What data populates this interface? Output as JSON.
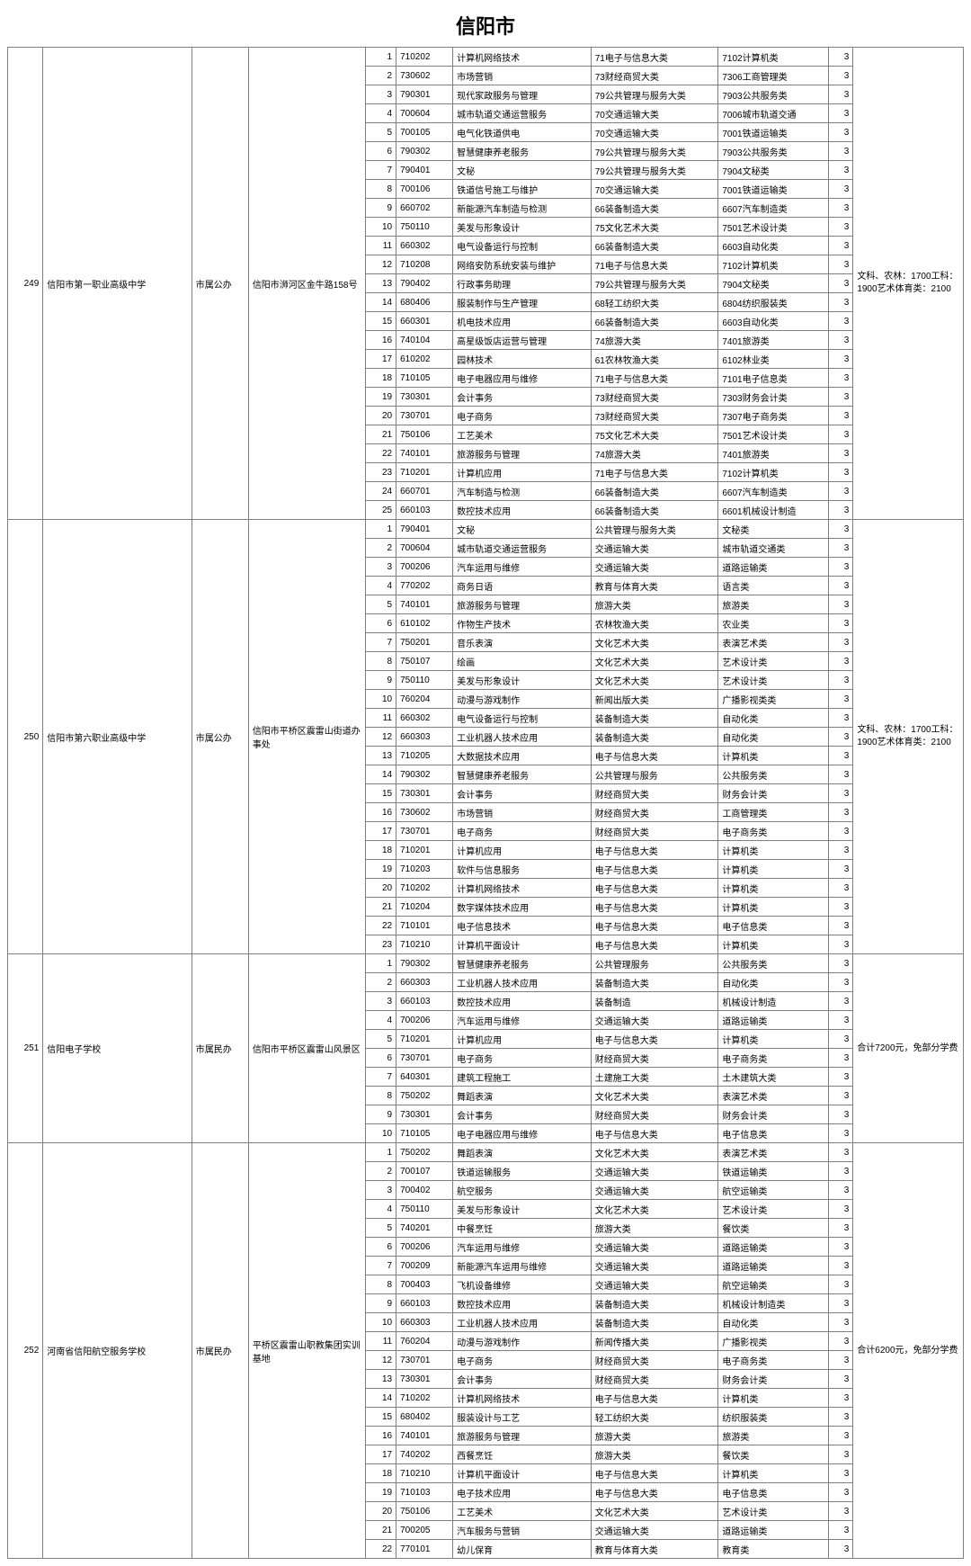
{
  "title": "信阳市",
  "colors": {
    "border": "#808080",
    "background": "#ffffff",
    "text": "#000000"
  },
  "schools": [
    {
      "index": 249,
      "name": "信阳市第一职业高级中学",
      "authority": "市属公办",
      "address": "信阳市浉河区金牛路158号",
      "note": "文科、农林：1700工科：1900艺术体育类：2100",
      "rows": [
        {
          "n": 1,
          "code": "710202",
          "major": "计算机网络技术",
          "cat1": "71电子与信息大类",
          "cat2": "7102计算机类",
          "yr": 3
        },
        {
          "n": 2,
          "code": "730602",
          "major": "市场营销",
          "cat1": "73财经商贸大类",
          "cat2": "7306工商管理类",
          "yr": 3
        },
        {
          "n": 3,
          "code": "790301",
          "major": "现代家政服务与管理",
          "cat1": "79公共管理与服务大类",
          "cat2": "7903公共服务类",
          "yr": 3
        },
        {
          "n": 4,
          "code": "700604",
          "major": "城市轨道交通运营服务",
          "cat1": "70交通运输大类",
          "cat2": "7006城市轨道交通",
          "yr": 3
        },
        {
          "n": 5,
          "code": "700105",
          "major": "电气化铁道供电",
          "cat1": "70交通运输大类",
          "cat2": "7001铁道运输类",
          "yr": 3
        },
        {
          "n": 6,
          "code": "790302",
          "major": "智慧健康养老服务",
          "cat1": "79公共管理与服务大类",
          "cat2": "7903公共服务类",
          "yr": 3
        },
        {
          "n": 7,
          "code": "790401",
          "major": "文秘",
          "cat1": "79公共管理与服务大类",
          "cat2": "7904文秘类",
          "yr": 3
        },
        {
          "n": 8,
          "code": "700106",
          "major": "铁道信号施工与维护",
          "cat1": "70交通运输大类",
          "cat2": "7001铁道运输类",
          "yr": 3
        },
        {
          "n": 9,
          "code": "660702",
          "major": "新能源汽车制造与检测",
          "cat1": "66装备制造大类",
          "cat2": "6607汽车制造类",
          "yr": 3
        },
        {
          "n": 10,
          "code": "750110",
          "major": "美发与形象设计",
          "cat1": "75文化艺术大类",
          "cat2": "7501艺术设计类",
          "yr": 3
        },
        {
          "n": 11,
          "code": "660302",
          "major": "电气设备运行与控制",
          "cat1": "66装备制造大类",
          "cat2": "6603自动化类",
          "yr": 3
        },
        {
          "n": 12,
          "code": "710208",
          "major": "网络安防系统安装与维护",
          "cat1": "71电子与信息大类",
          "cat2": "7102计算机类",
          "yr": 3
        },
        {
          "n": 13,
          "code": "790402",
          "major": "行政事务助理",
          "cat1": "79公共管理与服务大类",
          "cat2": "7904文秘类",
          "yr": 3
        },
        {
          "n": 14,
          "code": "680406",
          "major": "服装制作与生产管理",
          "cat1": "68轻工纺织大类",
          "cat2": "6804纺织服装类",
          "yr": 3
        },
        {
          "n": 15,
          "code": "660301",
          "major": "机电技术应用",
          "cat1": "66装备制造大类",
          "cat2": "6603自动化类",
          "yr": 3
        },
        {
          "n": 16,
          "code": "740104",
          "major": "高星级饭店运营与管理",
          "cat1": "74旅游大类",
          "cat2": "7401旅游类",
          "yr": 3
        },
        {
          "n": 17,
          "code": "610202",
          "major": "园林技术",
          "cat1": "61农林牧渔大类",
          "cat2": "6102林业类",
          "yr": 3
        },
        {
          "n": 18,
          "code": "710105",
          "major": "电子电器应用与维修",
          "cat1": "71电子与信息大类",
          "cat2": "7101电子信息类",
          "yr": 3
        },
        {
          "n": 19,
          "code": "730301",
          "major": "会计事务",
          "cat1": "73财经商贸大类",
          "cat2": "7303财务会计类",
          "yr": 3
        },
        {
          "n": 20,
          "code": "730701",
          "major": "电子商务",
          "cat1": "73财经商贸大类",
          "cat2": "7307电子商务类",
          "yr": 3
        },
        {
          "n": 21,
          "code": "750106",
          "major": "工艺美术",
          "cat1": "75文化艺术大类",
          "cat2": "7501艺术设计类",
          "yr": 3
        },
        {
          "n": 22,
          "code": "740101",
          "major": "旅游服务与管理",
          "cat1": "74旅游大类",
          "cat2": "7401旅游类",
          "yr": 3
        },
        {
          "n": 23,
          "code": "710201",
          "major": "计算机应用",
          "cat1": "71电子与信息大类",
          "cat2": "7102计算机类",
          "yr": 3
        },
        {
          "n": 24,
          "code": "660701",
          "major": "汽车制造与检测",
          "cat1": "66装备制造大类",
          "cat2": "6607汽车制造类",
          "yr": 3
        },
        {
          "n": 25,
          "code": "660103",
          "major": "数控技术应用",
          "cat1": "66装备制造大类",
          "cat2": "6601机械设计制造",
          "yr": 3
        }
      ]
    },
    {
      "index": 250,
      "name": "信阳市第六职业高级中学",
      "authority": "市属公办",
      "address": "信阳市平桥区震雷山街道办事处",
      "note": "文科、农林：1700工科：1900艺术体育类：2100",
      "rows": [
        {
          "n": 1,
          "code": "790401",
          "major": "文秘",
          "cat1": "公共管理与服务大类",
          "cat2": "文秘类",
          "yr": 3
        },
        {
          "n": 2,
          "code": "700604",
          "major": "城市轨道交通运营服务",
          "cat1": "交通运输大类",
          "cat2": "城市轨道交通类",
          "yr": 3
        },
        {
          "n": 3,
          "code": "700206",
          "major": "汽车运用与维修",
          "cat1": "交通运输大类",
          "cat2": "道路运输类",
          "yr": 3
        },
        {
          "n": 4,
          "code": "770202",
          "major": "商务日语",
          "cat1": "教育与体育大类",
          "cat2": "语言类",
          "yr": 3
        },
        {
          "n": 5,
          "code": "740101",
          "major": "旅游服务与管理",
          "cat1": "旅游大类",
          "cat2": "旅游类",
          "yr": 3
        },
        {
          "n": 6,
          "code": "610102",
          "major": "作物生产技术",
          "cat1": "农林牧渔大类",
          "cat2": "农业类",
          "yr": 3
        },
        {
          "n": 7,
          "code": "750201",
          "major": "音乐表演",
          "cat1": "文化艺术大类",
          "cat2": "表演艺术类",
          "yr": 3
        },
        {
          "n": 8,
          "code": "750107",
          "major": "绘画",
          "cat1": "文化艺术大类",
          "cat2": "艺术设计类",
          "yr": 3
        },
        {
          "n": 9,
          "code": "750110",
          "major": "美发与形象设计",
          "cat1": "文化艺术大类",
          "cat2": "艺术设计类",
          "yr": 3
        },
        {
          "n": 10,
          "code": "760204",
          "major": "动漫与游戏制作",
          "cat1": "新闻出版大类",
          "cat2": "广播影视类类",
          "yr": 3
        },
        {
          "n": 11,
          "code": "660302",
          "major": "电气设备运行与控制",
          "cat1": "装备制造大类",
          "cat2": "自动化类",
          "yr": 3
        },
        {
          "n": 12,
          "code": "660303",
          "major": "工业机器人技术应用",
          "cat1": "装备制造大类",
          "cat2": "自动化类",
          "yr": 3
        },
        {
          "n": 13,
          "code": "710205",
          "major": "大数据技术应用",
          "cat1": "电子与信息大类",
          "cat2": "计算机类",
          "yr": 3
        },
        {
          "n": 14,
          "code": "790302",
          "major": "智慧健康养老服务",
          "cat1": "公共管理与服务",
          "cat2": "公共服务类",
          "yr": 3
        },
        {
          "n": 15,
          "code": "730301",
          "major": "会计事务",
          "cat1": "财经商贸大类",
          "cat2": "财务会计类",
          "yr": 3
        },
        {
          "n": 16,
          "code": "730602",
          "major": "市场营销",
          "cat1": "财经商贸大类",
          "cat2": "工商管理类",
          "yr": 3
        },
        {
          "n": 17,
          "code": "730701",
          "major": "电子商务",
          "cat1": "财经商贸大类",
          "cat2": "电子商务类",
          "yr": 3
        },
        {
          "n": 18,
          "code": "710201",
          "major": "计算机应用",
          "cat1": "电子与信息大类",
          "cat2": "计算机类",
          "yr": 3
        },
        {
          "n": 19,
          "code": "710203",
          "major": "软件与信息服务",
          "cat1": "电子与信息大类",
          "cat2": "计算机类",
          "yr": 3
        },
        {
          "n": 20,
          "code": "710202",
          "major": "计算机网络技术",
          "cat1": "电子与信息大类",
          "cat2": "计算机类",
          "yr": 3
        },
        {
          "n": 21,
          "code": "710204",
          "major": "数字媒体技术应用",
          "cat1": "电子与信息大类",
          "cat2": "计算机类",
          "yr": 3
        },
        {
          "n": 22,
          "code": "710101",
          "major": "电子信息技术",
          "cat1": "电子与信息大类",
          "cat2": "电子信息类",
          "yr": 3
        },
        {
          "n": 23,
          "code": "710210",
          "major": "计算机平面设计",
          "cat1": "电子与信息大类",
          "cat2": "计算机类",
          "yr": 3
        }
      ]
    },
    {
      "index": 251,
      "name": "信阳电子学校",
      "authority": "市属民办",
      "address": "信阳市平桥区震雷山风景区",
      "note": "合计7200元，免部分学费",
      "rows": [
        {
          "n": 1,
          "code": "790302",
          "major": "智慧健康养老服务",
          "cat1": "公共管理服务",
          "cat2": "公共服务类",
          "yr": 3
        },
        {
          "n": 2,
          "code": "660303",
          "major": "工业机器人技术应用",
          "cat1": "装备制造大类",
          "cat2": "自动化类",
          "yr": 3
        },
        {
          "n": 3,
          "code": "660103",
          "major": "数控技术应用",
          "cat1": "装备制造",
          "cat2": "机械设计制造",
          "yr": 3
        },
        {
          "n": 4,
          "code": "700206",
          "major": "汽车运用与维修",
          "cat1": "交通运输大类",
          "cat2": "道路运输类",
          "yr": 3
        },
        {
          "n": 5,
          "code": "710201",
          "major": "计算机应用",
          "cat1": "电子与信息大类",
          "cat2": "计算机类",
          "yr": 3
        },
        {
          "n": 6,
          "code": "730701",
          "major": "电子商务",
          "cat1": "财经商贸大类",
          "cat2": "电子商务类",
          "yr": 3
        },
        {
          "n": 7,
          "code": "640301",
          "major": "建筑工程施工",
          "cat1": "土建施工大类",
          "cat2": "土木建筑大类",
          "yr": 3
        },
        {
          "n": 8,
          "code": "750202",
          "major": "舞蹈表演",
          "cat1": "文化艺术大类",
          "cat2": "表演艺术类",
          "yr": 3
        },
        {
          "n": 9,
          "code": "730301",
          "major": "会计事务",
          "cat1": "财经商贸大类",
          "cat2": "财务会计类",
          "yr": 3
        },
        {
          "n": 10,
          "code": "710105",
          "major": "电子电器应用与维修",
          "cat1": "电子与信息大类",
          "cat2": "电子信息类",
          "yr": 3
        }
      ]
    },
    {
      "index": 252,
      "name": "河南省信阳航空服务学校",
      "authority": "市属民办",
      "address": "平桥区震雷山职教集团实训基地",
      "note": "合计6200元，免部分学费",
      "rows": [
        {
          "n": 1,
          "code": "750202",
          "major": "舞蹈表演",
          "cat1": "文化艺术大类",
          "cat2": "表演艺术类",
          "yr": 3
        },
        {
          "n": 2,
          "code": "700107",
          "major": "铁道运输服务",
          "cat1": "交通运输大类",
          "cat2": "铁道运输类",
          "yr": 3
        },
        {
          "n": 3,
          "code": "700402",
          "major": "航空服务",
          "cat1": "交通运输大类",
          "cat2": "航空运输类",
          "yr": 3
        },
        {
          "n": 4,
          "code": "750110",
          "major": "美发与形象设计",
          "cat1": "文化艺术大类",
          "cat2": "艺术设计类",
          "yr": 3
        },
        {
          "n": 5,
          "code": "740201",
          "major": "中餐烹饪",
          "cat1": "旅游大类",
          "cat2": "餐饮类",
          "yr": 3
        },
        {
          "n": 6,
          "code": "700206",
          "major": "汽车运用与维修",
          "cat1": "交通运输大类",
          "cat2": "道路运输类",
          "yr": 3
        },
        {
          "n": 7,
          "code": "700209",
          "major": "新能源汽车运用与维修",
          "cat1": "交通运输大类",
          "cat2": "道路运输类",
          "yr": 3
        },
        {
          "n": 8,
          "code": "700403",
          "major": "飞机设备维修",
          "cat1": "交通运输大类",
          "cat2": "航空运输类",
          "yr": 3
        },
        {
          "n": 9,
          "code": "660103",
          "major": "数控技术应用",
          "cat1": "装备制造大类",
          "cat2": "机械设计制造类",
          "yr": 3
        },
        {
          "n": 10,
          "code": "660303",
          "major": "工业机器人技术应用",
          "cat1": "装备制造大类",
          "cat2": "自动化类",
          "yr": 3
        },
        {
          "n": 11,
          "code": "760204",
          "major": "动漫与游戏制作",
          "cat1": "新闻传播大类",
          "cat2": "广播影视类",
          "yr": 3
        },
        {
          "n": 12,
          "code": "730701",
          "major": "电子商务",
          "cat1": "财经商贸大类",
          "cat2": "电子商务类",
          "yr": 3
        },
        {
          "n": 13,
          "code": "730301",
          "major": "会计事务",
          "cat1": "财经商贸大类",
          "cat2": "财务会计类",
          "yr": 3
        },
        {
          "n": 14,
          "code": "710202",
          "major": "计算机网络技术",
          "cat1": "电子与信息大类",
          "cat2": "计算机类",
          "yr": 3
        },
        {
          "n": 15,
          "code": "680402",
          "major": "服装设计与工艺",
          "cat1": "轻工纺织大类",
          "cat2": "纺织服装类",
          "yr": 3
        },
        {
          "n": 16,
          "code": "740101",
          "major": "旅游服务与管理",
          "cat1": "旅游大类",
          "cat2": "旅游类",
          "yr": 3
        },
        {
          "n": 17,
          "code": "740202",
          "major": "西餐烹饪",
          "cat1": "旅游大类",
          "cat2": "餐饮类",
          "yr": 3
        },
        {
          "n": 18,
          "code": "710210",
          "major": "计算机平面设计",
          "cat1": "电子与信息大类",
          "cat2": "计算机类",
          "yr": 3
        },
        {
          "n": 19,
          "code": "710103",
          "major": "电子技术应用",
          "cat1": "电子与信息大类",
          "cat2": "电子信息类",
          "yr": 3
        },
        {
          "n": 20,
          "code": "750106",
          "major": "工艺美术",
          "cat1": "文化艺术大类",
          "cat2": "艺术设计类",
          "yr": 3
        },
        {
          "n": 21,
          "code": "700205",
          "major": "汽车服务与营销",
          "cat1": "交通运输大类",
          "cat2": "道路运输类",
          "yr": 3
        },
        {
          "n": 22,
          "code": "770101",
          "major": "幼儿保育",
          "cat1": "教育与体育大类",
          "cat2": "教育类",
          "yr": 3
        }
      ]
    }
  ]
}
